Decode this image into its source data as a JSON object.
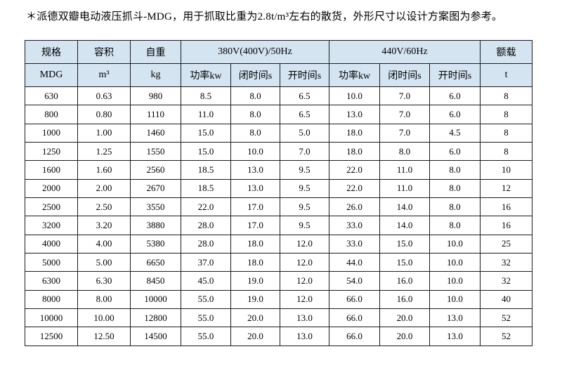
{
  "title": "＊派德双瓣电动液压抓斗-MDG，用于抓取比重为2.8t/m³左右的散货，外形尺寸以设计方案图为参考。",
  "table": {
    "header_groups": [
      {
        "label": "规格",
        "colspan": 1
      },
      {
        "label": "容积",
        "colspan": 1
      },
      {
        "label": "自重",
        "colspan": 1
      },
      {
        "label": "380V(400V)/50Hz",
        "colspan": 3
      },
      {
        "label": "440V/60Hz",
        "colspan": 3
      },
      {
        "label": "额载",
        "colspan": 1
      }
    ],
    "header_units": [
      "MDG",
      "m³",
      "kg",
      "功率kw",
      "闭时间s",
      "开时间s",
      "功率kw",
      "闭时间s",
      "开时间s",
      "t"
    ],
    "rows": [
      [
        "630",
        "0.63",
        "980",
        "8.5",
        "8.0",
        "6.5",
        "10.0",
        "7.0",
        "6.0",
        "8"
      ],
      [
        "800",
        "0.80",
        "1110",
        "11.0",
        "8.0",
        "6.5",
        "13.0",
        "7.0",
        "6.0",
        "8"
      ],
      [
        "1000",
        "1.00",
        "1460",
        "15.0",
        "8.0",
        "5.0",
        "18.0",
        "7.0",
        "4.5",
        "8"
      ],
      [
        "1250",
        "1.25",
        "1550",
        "15.0",
        "10.0",
        "7.0",
        "18.0",
        "8.0",
        "6.0",
        "8"
      ],
      [
        "1600",
        "1.60",
        "2560",
        "18.5",
        "13.0",
        "9.5",
        "22.0",
        "11.0",
        "8.0",
        "10"
      ],
      [
        "2000",
        "2.00",
        "2670",
        "18.5",
        "13.0",
        "9.5",
        "22.0",
        "11.0",
        "8.0",
        "12"
      ],
      [
        "2500",
        "2.50",
        "3550",
        "22.0",
        "17.0",
        "9.5",
        "26.0",
        "14.0",
        "8.0",
        "16"
      ],
      [
        "3200",
        "3.20",
        "3880",
        "28.0",
        "17.0",
        "9.5",
        "33.0",
        "14.0",
        "8.0",
        "16"
      ],
      [
        "4000",
        "4.00",
        "5380",
        "28.0",
        "18.0",
        "12.0",
        "33.0",
        "15.0",
        "10.0",
        "25"
      ],
      [
        "5000",
        "5.00",
        "6650",
        "37.0",
        "18.0",
        "12.0",
        "44.0",
        "15.0",
        "10.0",
        "32"
      ],
      [
        "6300",
        "6.30",
        "8450",
        "45.0",
        "19.0",
        "12.0",
        "54.0",
        "16.0",
        "10.0",
        "32"
      ],
      [
        "8000",
        "8.00",
        "10000",
        "55.0",
        "19.0",
        "12.0",
        "66.0",
        "16.0",
        "10.0",
        "40"
      ],
      [
        "10000",
        "10.00",
        "12800",
        "55.0",
        "20.0",
        "13.0",
        "66.0",
        "20.0",
        "13.0",
        "52"
      ],
      [
        "12500",
        "12.50",
        "14500",
        "55.0",
        "20.0",
        "13.0",
        "66.0",
        "20.0",
        "13.0",
        "52"
      ]
    ],
    "colors": {
      "header_bg": "#d5e4f1",
      "row_bg": "#ffffff",
      "border": "#1b1b1b",
      "text": "#000000"
    }
  }
}
